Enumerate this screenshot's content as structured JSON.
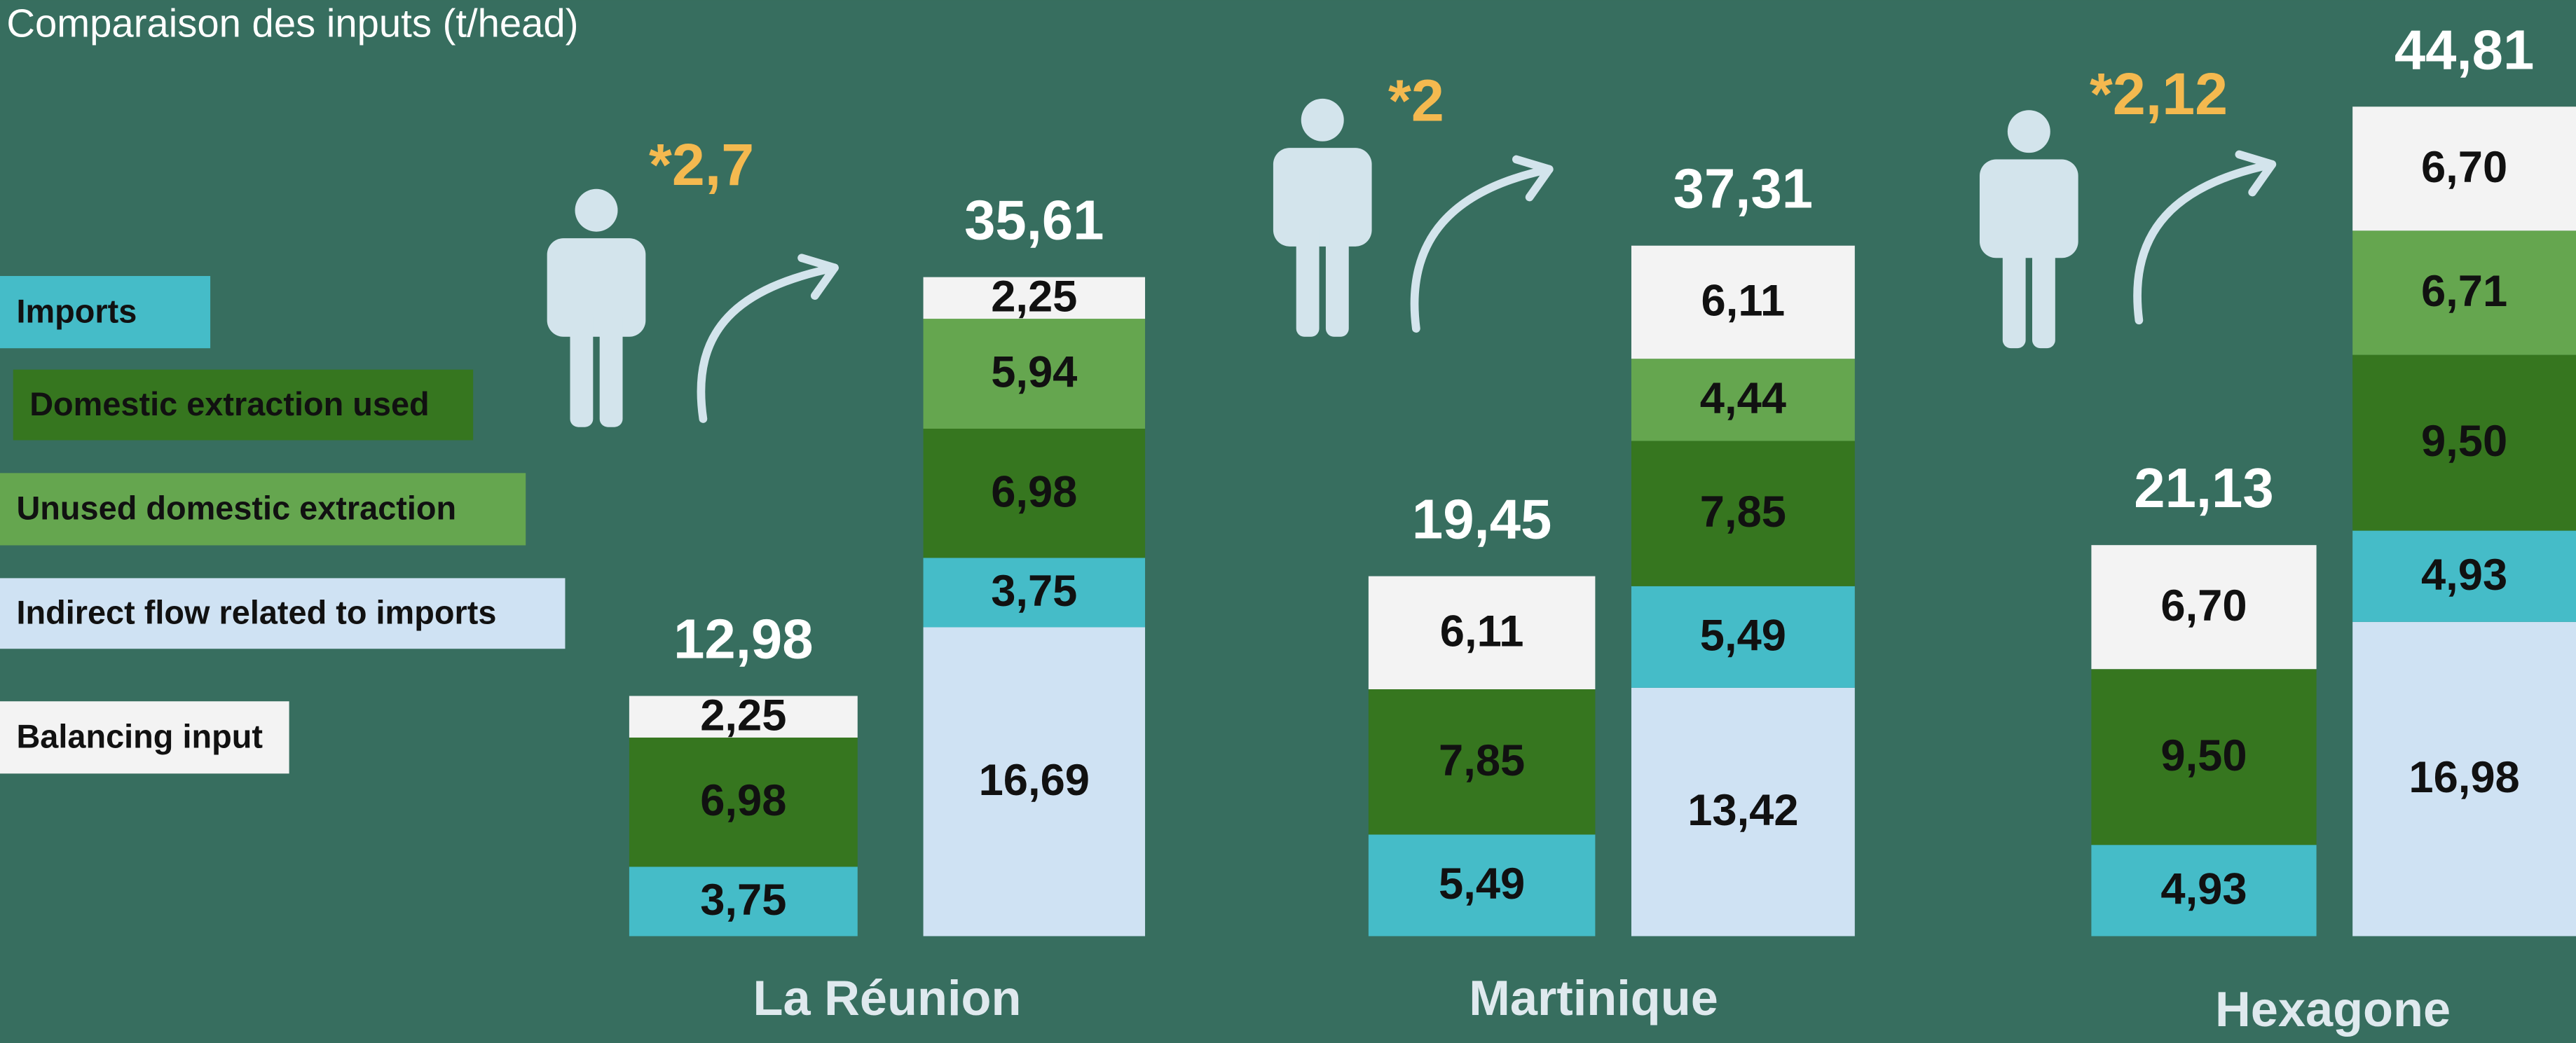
{
  "chart_data": {
    "type": "stacked_bar",
    "title": "Comparaison des inputs (t/head)",
    "series": [
      {
        "name": "Imports",
        "color": "#45bcc8"
      },
      {
        "name": "Domestic extraction used",
        "color": "#36761f"
      },
      {
        "name": "Unused domestic extraction",
        "color": "#65a64f"
      },
      {
        "name": "Indirect flow related to imports",
        "color": "#cfe2f3"
      },
      {
        "name": "Balancing input",
        "color": "#f3f3f3"
      }
    ],
    "groups": [
      {
        "name": "La Réunion",
        "factor": "*2,7",
        "bars": [
          {
            "total": 12.98,
            "total_label": "12,98",
            "values": [
              3.75,
              6.98,
              null,
              null,
              2.25
            ],
            "value_labels": [
              "3,75",
              "6,98",
              null,
              null,
              "2,25"
            ]
          },
          {
            "total": 35.61,
            "total_label": "35,61",
            "values": [
              3.75,
              6.98,
              5.94,
              16.69,
              2.25
            ],
            "value_labels": [
              "3,75",
              "6,98",
              "5,94",
              "16,69",
              "2,25"
            ]
          }
        ]
      },
      {
        "name": "Martinique",
        "factor": "*2",
        "bars": [
          {
            "total": 19.45,
            "total_label": "19,45",
            "values": [
              5.49,
              7.85,
              null,
              null,
              6.11
            ],
            "value_labels": [
              "5,49",
              "7,85",
              null,
              null,
              "6,11"
            ]
          },
          {
            "total": 37.31,
            "total_label": "37,31",
            "values": [
              5.49,
              7.85,
              4.44,
              13.42,
              6.11
            ],
            "value_labels": [
              "5,49",
              "7,85",
              "4,44",
              "13,42",
              "6,11"
            ]
          }
        ]
      },
      {
        "name": "Hexagone",
        "factor": "*2,12",
        "bars": [
          {
            "total": 21.13,
            "total_label": "21,13",
            "values": [
              4.93,
              9.5,
              null,
              null,
              6.7
            ],
            "value_labels": [
              "4,93",
              "9,50",
              null,
              null,
              "6,70"
            ]
          },
          {
            "total": 44.81,
            "total_label": "44,81",
            "values": [
              4.93,
              9.5,
              6.71,
              16.98,
              6.7
            ],
            "value_labels": [
              "4,93",
              "9,50",
              "6,71",
              "16,98",
              "6,70"
            ]
          }
        ]
      }
    ]
  }
}
